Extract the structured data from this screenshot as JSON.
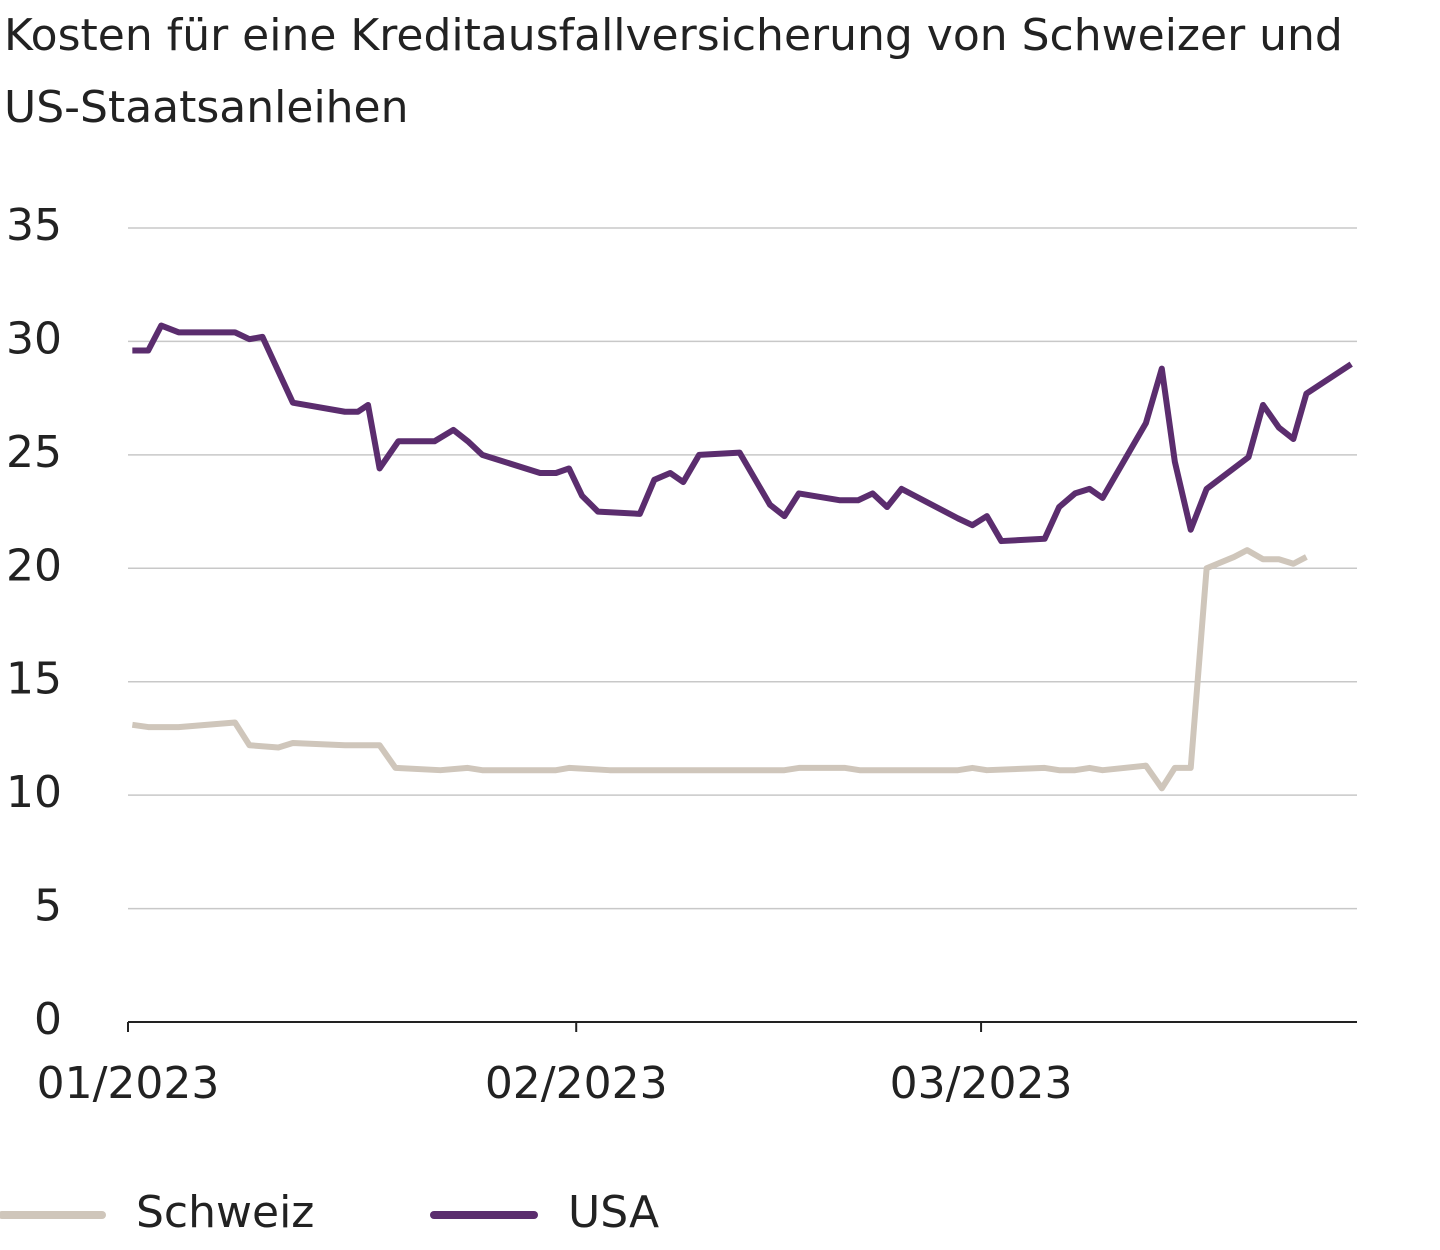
{
  "chart_data": {
    "type": "line",
    "title": "Kosten für eine Kreditausfallversicherung von Schweizer und US-Staatsanleihen",
    "xlim": [
      0,
      85
    ],
    "xticks": [
      {
        "value": 0,
        "label": "01/2023"
      },
      {
        "value": 31,
        "label": "02/2023"
      },
      {
        "value": 59,
        "label": "03/2023"
      }
    ],
    "ylim": [
      0,
      35
    ],
    "yticks": [
      0,
      5,
      10,
      15,
      20,
      25,
      30,
      35
    ],
    "grid": true,
    "legend": "bottom",
    "series": [
      {
        "name": "Schweiz",
        "color": "#cfc6bb",
        "x": [
          0.3,
          1.4,
          2.3,
          3.5,
          7.4,
          8.4,
          10.4,
          11.4,
          15,
          17.4,
          18.5,
          21.6,
          23.5,
          24.5,
          29.6,
          30.5,
          33.3,
          35.4,
          45.4,
          46.4,
          49.6,
          50.6,
          57.4,
          58.4,
          59.4,
          63.4,
          64.4,
          65.5,
          66.5,
          67.4,
          70.4,
          71.5,
          72.4,
          73.5,
          74.6,
          76.5,
          77.4,
          78.5,
          79.6,
          80.6,
          81.5
        ],
        "values": [
          13.1,
          13.0,
          13.0,
          13.0,
          13.2,
          12.2,
          12.1,
          12.3,
          12.2,
          12.2,
          11.2,
          11.1,
          11.2,
          11.1,
          11.1,
          11.2,
          11.1,
          11.1,
          11.1,
          11.2,
          11.2,
          11.1,
          11.1,
          11.2,
          11.1,
          11.2,
          11.1,
          11.1,
          11.2,
          11.1,
          11.3,
          10.3,
          11.2,
          11.2,
          20.0,
          20.5,
          20.8,
          20.4,
          20.4,
          20.2,
          20.5
        ]
      },
      {
        "name": "USA",
        "color": "#5b2d6e",
        "x": [
          0.3,
          1.4,
          2.3,
          3.5,
          7.4,
          8.4,
          9.3,
          11.4,
          15,
          15.9,
          16.6,
          17.4,
          18.7,
          21.2,
          22.5,
          23.5,
          24.5,
          28.5,
          29.6,
          30.5,
          31.4,
          32.5,
          35.4,
          36.4,
          37.5,
          38.4,
          39.5,
          42.3,
          44.4,
          45.4,
          46.4,
          49.2,
          50.5,
          51.5,
          52.5,
          53.5,
          57.4,
          58.4,
          59.4,
          60.4,
          63.4,
          64.4,
          65.5,
          66.5,
          67.4,
          70.4,
          71.5,
          72.4,
          73.5,
          74.6,
          77.5,
          78.5,
          79.6,
          80.6,
          81.5,
          84.6
        ],
        "values": [
          29.6,
          29.6,
          30.7,
          30.4,
          30.4,
          30.1,
          30.2,
          27.3,
          26.9,
          26.9,
          27.2,
          24.4,
          25.6,
          25.6,
          26.1,
          25.6,
          25.0,
          24.2,
          24.2,
          24.4,
          23.2,
          22.5,
          22.4,
          23.9,
          24.2,
          23.8,
          25.0,
          25.1,
          22.8,
          22.3,
          23.3,
          23.0,
          23.0,
          23.3,
          22.7,
          23.5,
          22.2,
          21.9,
          22.3,
          21.2,
          21.3,
          22.7,
          23.3,
          23.5,
          23.1,
          26.4,
          28.8,
          24.7,
          21.7,
          23.5,
          24.9,
          27.2,
          26.2,
          25.7,
          27.7,
          29.0
        ]
      }
    ]
  }
}
